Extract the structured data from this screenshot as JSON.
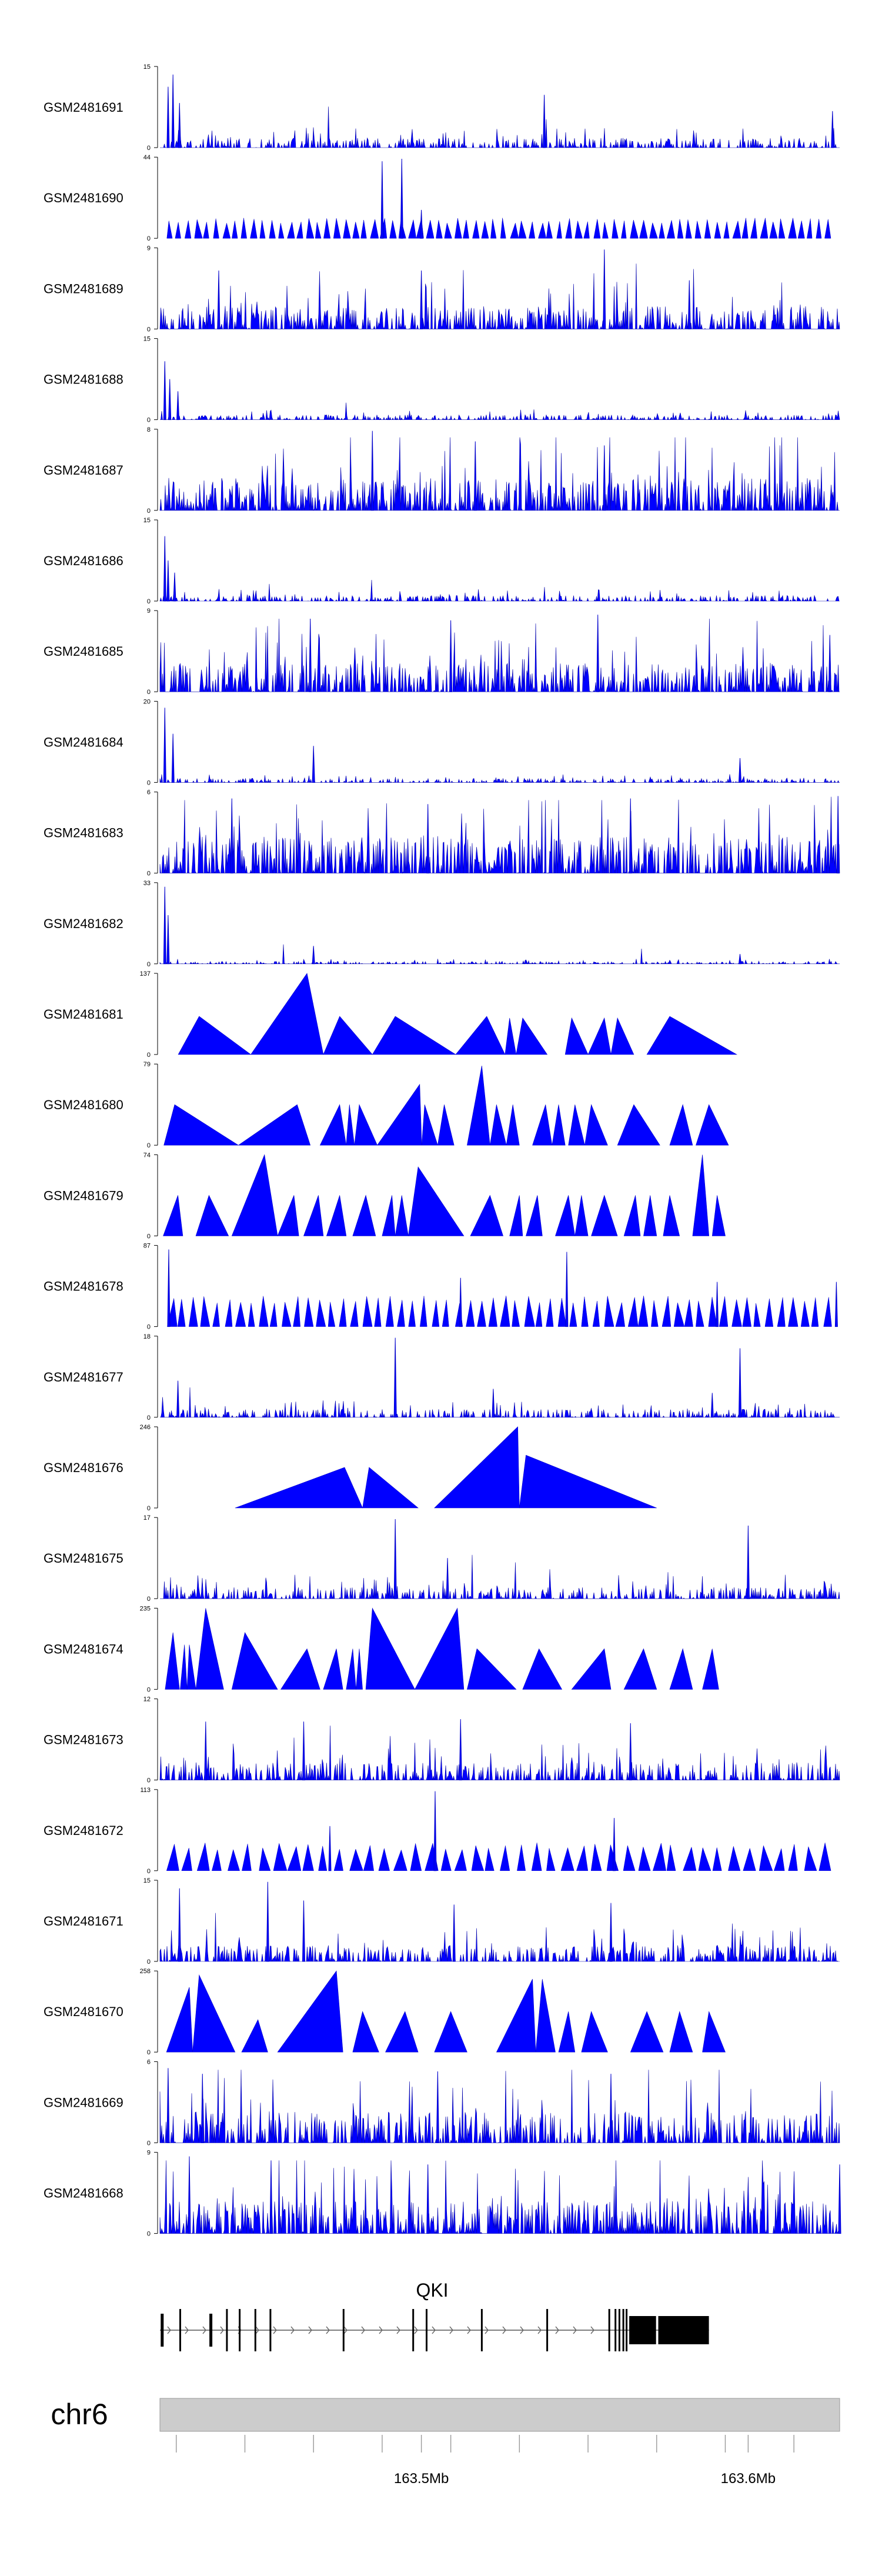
{
  "chart_data": {
    "type": "area",
    "title": "",
    "track_color": "#0000ff",
    "outline_color": "#0000cc",
    "genome": {
      "chrom": "chr6",
      "x_start_mb": 163.42,
      "x_end_mb": 163.628,
      "axis_ticks_mb": [
        163.425,
        163.446,
        163.467,
        163.488,
        163.5,
        163.509,
        163.53,
        163.551,
        163.572,
        163.593,
        163.6,
        163.614
      ],
      "axis_labels": [
        {
          "text": "163.5Mb",
          "mb": 163.5
        },
        {
          "text": "163.6Mb",
          "mb": 163.6
        }
      ]
    },
    "gene": {
      "name": "QKI",
      "strand": "+",
      "start_mb": 163.42,
      "end_mb": 163.588,
      "exons_mb": [
        163.4205,
        163.4262,
        163.4354,
        163.4405,
        163.4444,
        163.4492,
        163.4538,
        163.4762,
        163.4975,
        163.5016,
        163.5185,
        163.5385,
        163.5575,
        163.5594,
        163.5606,
        163.5618,
        163.5628
      ],
      "coding_blocks_mb": [
        [
          163.5636,
          163.5718
        ],
        [
          163.5725,
          163.588
        ]
      ]
    },
    "series": [
      {
        "name": "GSM2481691",
        "ymax": 15,
        "style": "noise",
        "density": 0.45,
        "baseline": 0.12,
        "peaks": [
          [
            163.4225,
            0.75
          ],
          [
            163.424,
            0.9
          ],
          [
            163.426,
            0.55
          ],
          [
            163.5376,
            0.65
          ],
          [
            163.6258,
            0.45
          ]
        ]
      },
      {
        "name": "GSM2481690",
        "ymax": 44,
        "style": "triangles",
        "count": 72,
        "height": 0.22,
        "peaks": [
          [
            163.488,
            0.95
          ],
          [
            163.494,
            0.98
          ],
          [
            163.5,
            0.35
          ]
        ]
      },
      {
        "name": "GSM2481689",
        "ymax": 9,
        "style": "noise",
        "density": 0.55,
        "baseline": 0.28,
        "peaks": [
          [
            163.438,
            0.72
          ],
          [
            163.5,
            0.72
          ],
          [
            163.556,
            0.98
          ],
          [
            163.582,
            0.6
          ]
        ]
      },
      {
        "name": "GSM2481688",
        "ymax": 15,
        "style": "noise",
        "density": 0.4,
        "baseline": 0.06,
        "peaks": [
          [
            163.4215,
            0.72
          ],
          [
            163.423,
            0.5
          ],
          [
            163.4255,
            0.35
          ]
        ]
      },
      {
        "name": "GSM2481687",
        "ymax": 8,
        "style": "noise",
        "density": 0.6,
        "baseline": 0.4,
        "peaks": [
          [
            163.485,
            0.98
          ],
          [
            163.5165,
            0.85
          ],
          [
            163.556,
            0.8
          ]
        ]
      },
      {
        "name": "GSM2481686",
        "ymax": 15,
        "style": "noise",
        "density": 0.4,
        "baseline": 0.07,
        "peaks": [
          [
            163.4215,
            0.8
          ],
          [
            163.4225,
            0.5
          ],
          [
            163.4245,
            0.35
          ]
        ]
      },
      {
        "name": "GSM2481685",
        "ymax": 9,
        "style": "noise",
        "density": 0.55,
        "baseline": 0.35,
        "peaks": [
          [
            163.466,
            0.9
          ],
          [
            163.509,
            0.88
          ],
          [
            163.554,
            0.95
          ],
          [
            163.625,
            0.7
          ]
        ]
      },
      {
        "name": "GSM2481684",
        "ymax": 20,
        "style": "noise",
        "density": 0.4,
        "baseline": 0.05,
        "peaks": [
          [
            163.4215,
            0.92
          ],
          [
            163.424,
            0.6
          ],
          [
            163.467,
            0.45
          ],
          [
            163.5975,
            0.3
          ]
        ]
      },
      {
        "name": "GSM2481683",
        "ymax": 6,
        "style": "noise",
        "density": 0.6,
        "baseline": 0.45,
        "peaks": [
          [
            163.442,
            0.92
          ],
          [
            163.502,
            0.85
          ],
          [
            163.564,
            0.92
          ],
          [
            163.6275,
            0.95
          ]
        ]
      },
      {
        "name": "GSM2481682",
        "ymax": 33,
        "style": "noise",
        "density": 0.35,
        "baseline": 0.03,
        "peaks": [
          [
            163.4215,
            0.95
          ],
          [
            163.4225,
            0.6
          ],
          [
            163.467,
            0.22
          ],
          [
            163.5975,
            0.12
          ]
        ]
      },
      {
        "name": "GSM2481681",
        "ymax": 137,
        "style": "shapes",
        "shapes": [
          [
            163.4256,
            163.432,
            163.4478,
            0.47
          ],
          [
            163.4478,
            163.465,
            163.47,
            1.0
          ],
          [
            163.47,
            163.475,
            163.485,
            0.47
          ],
          [
            163.485,
            163.492,
            163.5105,
            0.47
          ],
          [
            163.5105,
            163.52,
            163.5256,
            0.47
          ],
          [
            163.5256,
            163.527,
            163.529,
            0.45
          ],
          [
            163.529,
            163.531,
            163.5385,
            0.45
          ],
          [
            163.544,
            163.546,
            163.551,
            0.45
          ],
          [
            163.551,
            163.556,
            163.558,
            0.45
          ],
          [
            163.558,
            163.56,
            163.565,
            0.45
          ],
          [
            163.569,
            163.576,
            163.5965,
            0.47
          ]
        ]
      },
      {
        "name": "GSM2481680",
        "ymax": 79,
        "style": "shapes",
        "shapes": [
          [
            163.4212,
            163.4245,
            163.444,
            0.5
          ],
          [
            163.444,
            163.462,
            163.466,
            0.5
          ],
          [
            163.469,
            163.475,
            163.477,
            0.5
          ],
          [
            163.477,
            163.478,
            163.4795,
            0.5
          ],
          [
            163.4795,
            163.481,
            163.4865,
            0.5
          ],
          [
            163.4865,
            163.4995,
            163.5001,
            0.75
          ],
          [
            163.5001,
            163.501,
            163.505,
            0.5
          ],
          [
            163.505,
            163.507,
            163.51,
            0.5
          ],
          [
            163.514,
            163.5185,
            163.521,
            0.98
          ],
          [
            163.521,
            163.523,
            163.526,
            0.5
          ],
          [
            163.526,
            163.528,
            163.53,
            0.5
          ],
          [
            163.534,
            163.538,
            163.54,
            0.5
          ],
          [
            163.54,
            163.542,
            163.544,
            0.5
          ],
          [
            163.545,
            163.547,
            163.55,
            0.5
          ],
          [
            163.55,
            163.552,
            163.557,
            0.5
          ],
          [
            163.56,
            163.565,
            163.573,
            0.5
          ],
          [
            163.576,
            163.58,
            163.583,
            0.5
          ],
          [
            163.584,
            163.588,
            163.594,
            0.5
          ]
        ]
      },
      {
        "name": "GSM2481679",
        "ymax": 74,
        "style": "shapes",
        "shapes": [
          [
            163.421,
            163.4255,
            163.427,
            0.5
          ],
          [
            163.431,
            163.435,
            163.441,
            0.5
          ],
          [
            163.442,
            163.452,
            163.456,
            1.0
          ],
          [
            163.456,
            163.461,
            163.4625,
            0.5
          ],
          [
            163.464,
            163.4685,
            163.47,
            0.5
          ],
          [
            163.471,
            163.475,
            163.477,
            0.5
          ],
          [
            163.479,
            163.483,
            163.486,
            0.5
          ],
          [
            163.488,
            163.491,
            163.492,
            0.5
          ],
          [
            163.492,
            163.494,
            163.496,
            0.5
          ],
          [
            163.496,
            163.499,
            163.513,
            0.85
          ],
          [
            163.515,
            163.521,
            163.525,
            0.5
          ],
          [
            163.527,
            163.53,
            163.531,
            0.5
          ],
          [
            163.532,
            163.5355,
            163.537,
            0.5
          ],
          [
            163.541,
            163.545,
            163.547,
            0.5
          ],
          [
            163.547,
            163.549,
            163.551,
            0.5
          ],
          [
            163.552,
            163.556,
            163.56,
            0.5
          ],
          [
            163.562,
            163.5655,
            163.567,
            0.5
          ],
          [
            163.568,
            163.57,
            163.572,
            0.5
          ],
          [
            163.574,
            163.576,
            163.579,
            0.5
          ],
          [
            163.583,
            163.586,
            163.588,
            1.0
          ],
          [
            163.589,
            163.5905,
            163.593,
            0.5
          ]
        ]
      },
      {
        "name": "GSM2481678",
        "ymax": 87,
        "style": "triangles",
        "count": 58,
        "height": 0.33,
        "peaks": [
          [
            163.4227,
            0.95
          ],
          [
            163.512,
            0.6
          ],
          [
            163.5445,
            0.92
          ],
          [
            163.5905,
            0.55
          ],
          [
            163.627,
            0.55
          ]
        ]
      },
      {
        "name": "GSM2481677",
        "ymax": 18,
        "style": "noise",
        "density": 0.4,
        "baseline": 0.1,
        "peaks": [
          [
            163.4255,
            0.45
          ],
          [
            163.492,
            0.98
          ],
          [
            163.522,
            0.35
          ],
          [
            163.589,
            0.3
          ],
          [
            163.5975,
            0.85
          ]
        ]
      },
      {
        "name": "GSM2481676",
        "ymax": 246,
        "style": "shapes",
        "shapes": [
          [
            163.443,
            163.4765,
            163.482,
            0.5
          ],
          [
            163.482,
            163.484,
            163.499,
            0.5
          ],
          [
            163.504,
            163.5295,
            163.53,
            1.0
          ],
          [
            163.53,
            163.532,
            163.572,
            0.65
          ]
        ]
      },
      {
        "name": "GSM2481675",
        "ymax": 17,
        "style": "noise",
        "density": 0.45,
        "baseline": 0.14,
        "peaks": [
          [
            163.492,
            0.98
          ],
          [
            163.6,
            0.9
          ],
          [
            163.508,
            0.5
          ]
        ]
      },
      {
        "name": "GSM2481674",
        "ymax": 235,
        "style": "shapes",
        "shapes": [
          [
            163.4216,
            163.424,
            163.426,
            0.7
          ],
          [
            163.4262,
            163.4275,
            163.4283,
            0.55
          ],
          [
            163.4283,
            163.429,
            163.431,
            0.55
          ],
          [
            163.431,
            163.434,
            163.4395,
            1.0
          ],
          [
            163.442,
            163.446,
            163.456,
            0.7
          ],
          [
            163.457,
            163.465,
            163.469,
            0.5
          ],
          [
            163.47,
            163.474,
            163.476,
            0.5
          ],
          [
            163.477,
            163.479,
            163.48,
            0.5
          ],
          [
            163.48,
            163.481,
            163.482,
            0.5
          ],
          [
            163.483,
            163.485,
            163.498,
            1.0
          ],
          [
            163.498,
            163.511,
            163.513,
            1.0
          ],
          [
            163.514,
            163.517,
            163.529,
            0.5
          ],
          [
            163.531,
            163.536,
            163.543,
            0.5
          ],
          [
            163.546,
            163.556,
            163.558,
            0.5
          ],
          [
            163.562,
            163.568,
            163.572,
            0.5
          ],
          [
            163.576,
            163.58,
            163.583,
            0.5
          ],
          [
            163.586,
            163.589,
            163.591,
            0.5
          ]
        ]
      },
      {
        "name": "GSM2481673",
        "ymax": 12,
        "style": "noise",
        "density": 0.5,
        "baseline": 0.22,
        "peaks": [
          [
            163.434,
            0.72
          ],
          [
            163.464,
            0.72
          ],
          [
            163.512,
            0.75
          ],
          [
            163.564,
            0.7
          ]
        ]
      },
      {
        "name": "GSM2481672",
        "ymax": 113,
        "style": "triangles",
        "count": 44,
        "height": 0.3,
        "peaks": [
          [
            163.472,
            0.55
          ],
          [
            163.5042,
            0.98
          ],
          [
            163.559,
            0.65
          ]
        ]
      },
      {
        "name": "GSM2481671",
        "ymax": 15,
        "style": "noise",
        "density": 0.5,
        "baseline": 0.2,
        "peaks": [
          [
            163.426,
            0.9
          ],
          [
            163.453,
            0.98
          ],
          [
            163.464,
            0.75
          ],
          [
            163.51,
            0.7
          ],
          [
            163.558,
            0.72
          ]
        ]
      },
      {
        "name": "GSM2481670",
        "ymax": 258,
        "style": "shapes",
        "shapes": [
          [
            163.422,
            163.429,
            163.43,
            0.8
          ],
          [
            163.43,
            163.432,
            163.443,
            0.95
          ],
          [
            163.445,
            163.45,
            163.453,
            0.4
          ],
          [
            163.456,
            163.474,
            163.476,
            1.0
          ],
          [
            163.479,
            163.482,
            163.487,
            0.5
          ],
          [
            163.489,
            163.495,
            163.499,
            0.5
          ],
          [
            163.504,
            163.509,
            163.514,
            0.5
          ],
          [
            163.523,
            163.534,
            163.535,
            0.9
          ],
          [
            163.535,
            163.537,
            163.541,
            0.9
          ],
          [
            163.542,
            163.545,
            163.547,
            0.5
          ],
          [
            163.549,
            163.552,
            163.557,
            0.5
          ],
          [
            163.564,
            163.569,
            163.574,
            0.5
          ],
          [
            163.576,
            163.579,
            163.583,
            0.5
          ],
          [
            163.586,
            163.588,
            163.593,
            0.5
          ]
        ]
      },
      {
        "name": "GSM2481669",
        "ymax": 6,
        "style": "noise",
        "density": 0.55,
        "baseline": 0.38,
        "peaks": [
          [
            163.4225,
            0.92
          ],
          [
            163.433,
            0.85
          ],
          [
            163.505,
            0.88
          ],
          [
            163.558,
            0.85
          ]
        ]
      },
      {
        "name": "GSM2481668",
        "ymax": 9,
        "style": "noise",
        "density": 0.6,
        "baseline": 0.4,
        "peaks": [
          [
            163.429,
            0.95
          ],
          [
            163.454,
            0.9
          ],
          [
            163.502,
            0.85
          ],
          [
            163.628,
            0.85
          ]
        ]
      }
    ]
  }
}
